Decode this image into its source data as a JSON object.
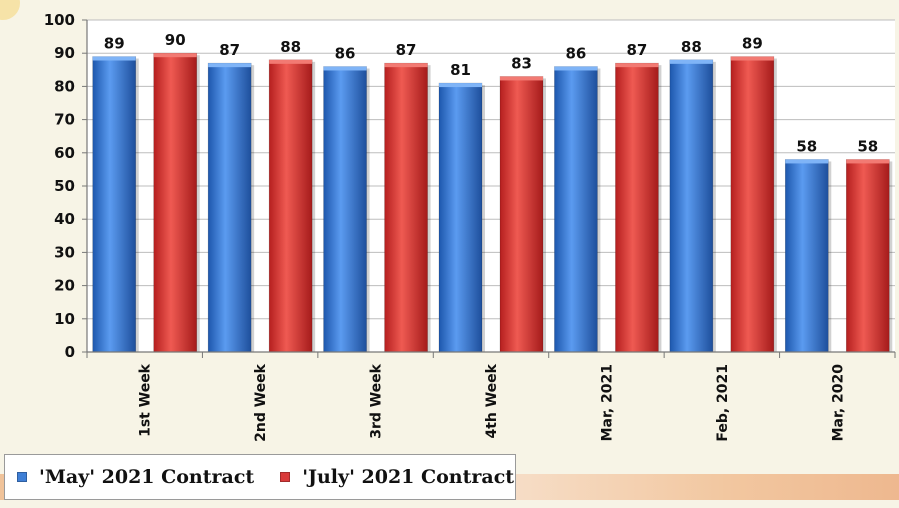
{
  "chart_data": {
    "type": "bar",
    "title": "",
    "xlabel": "",
    "ylabel": "",
    "categories": [
      "1st Week",
      "2nd Week",
      "3rd Week",
      "4th Week",
      "Mar, 2021",
      "Feb, 2021",
      "Mar, 2020"
    ],
    "series": [
      {
        "name": "'May' 2021 Contract",
        "values": [
          89,
          87,
          86,
          81,
          86,
          88,
          58
        ],
        "color": "#3f7fd6"
      },
      {
        "name": "'July' 2021 Contract",
        "values": [
          90,
          88,
          87,
          83,
          87,
          89,
          58
        ],
        "color": "#d93a3a"
      }
    ],
    "ylim": [
      0,
      100
    ],
    "yticks": [
      0,
      10,
      20,
      30,
      40,
      50,
      60,
      70,
      80,
      90,
      100
    ],
    "grid": true,
    "legend_position": "bottom-left"
  },
  "legend": {
    "items": [
      {
        "label": "'May' 2021 Contract",
        "color": "#3f7fd6"
      },
      {
        "label": "'July' 2021 Contract",
        "color": "#d93a3a"
      }
    ]
  }
}
